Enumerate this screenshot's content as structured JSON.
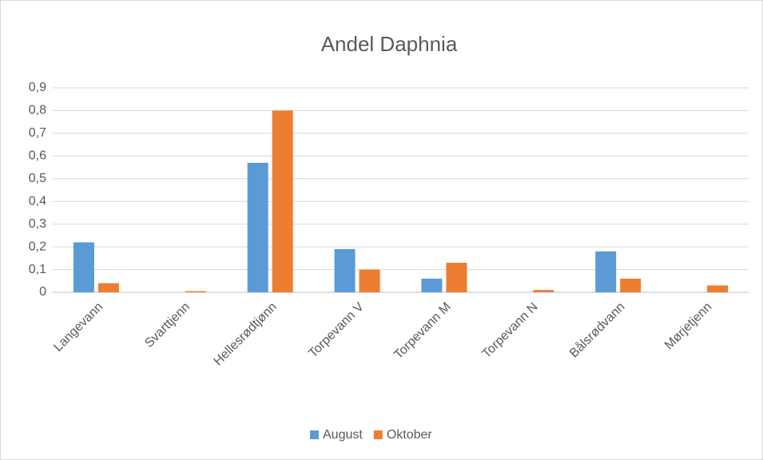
{
  "chart_data": {
    "type": "bar",
    "title": "Andel Daphnia",
    "categories": [
      "Langevann",
      "Svarttjenn",
      "Hellesrødtjønn",
      "Torpevann V",
      "Torpevann M",
      "Torpevann N",
      "Bålsrødvann",
      "Mørjetjenn"
    ],
    "series": [
      {
        "name": "August",
        "color": "#5b9bd5",
        "values": [
          0.22,
          0,
          0.57,
          0.19,
          0.06,
          0,
          0.18,
          0
        ]
      },
      {
        "name": "Oktober",
        "color": "#ed7d31",
        "values": [
          0.04,
          0.005,
          0.8,
          0.1,
          0.13,
          0.01,
          0.06,
          0.03
        ]
      }
    ],
    "ylim": [
      0,
      0.9
    ],
    "yticks": [
      0,
      {
        "value": 0.1,
        "label": "0,1"
      },
      {
        "value": 0.2,
        "label": "0,2"
      },
      {
        "value": 0.3,
        "label": "0,3"
      },
      {
        "value": 0.4,
        "label": "0,4"
      },
      {
        "value": 0.5,
        "label": "0,5"
      },
      {
        "value": 0.6,
        "label": "0,6"
      },
      {
        "value": 0.7,
        "label": "0,7"
      },
      {
        "value": 0.8,
        "label": "0,8"
      },
      {
        "value": 0.9,
        "label": "0,9"
      }
    ],
    "grid": true,
    "legend": "bottom"
  }
}
